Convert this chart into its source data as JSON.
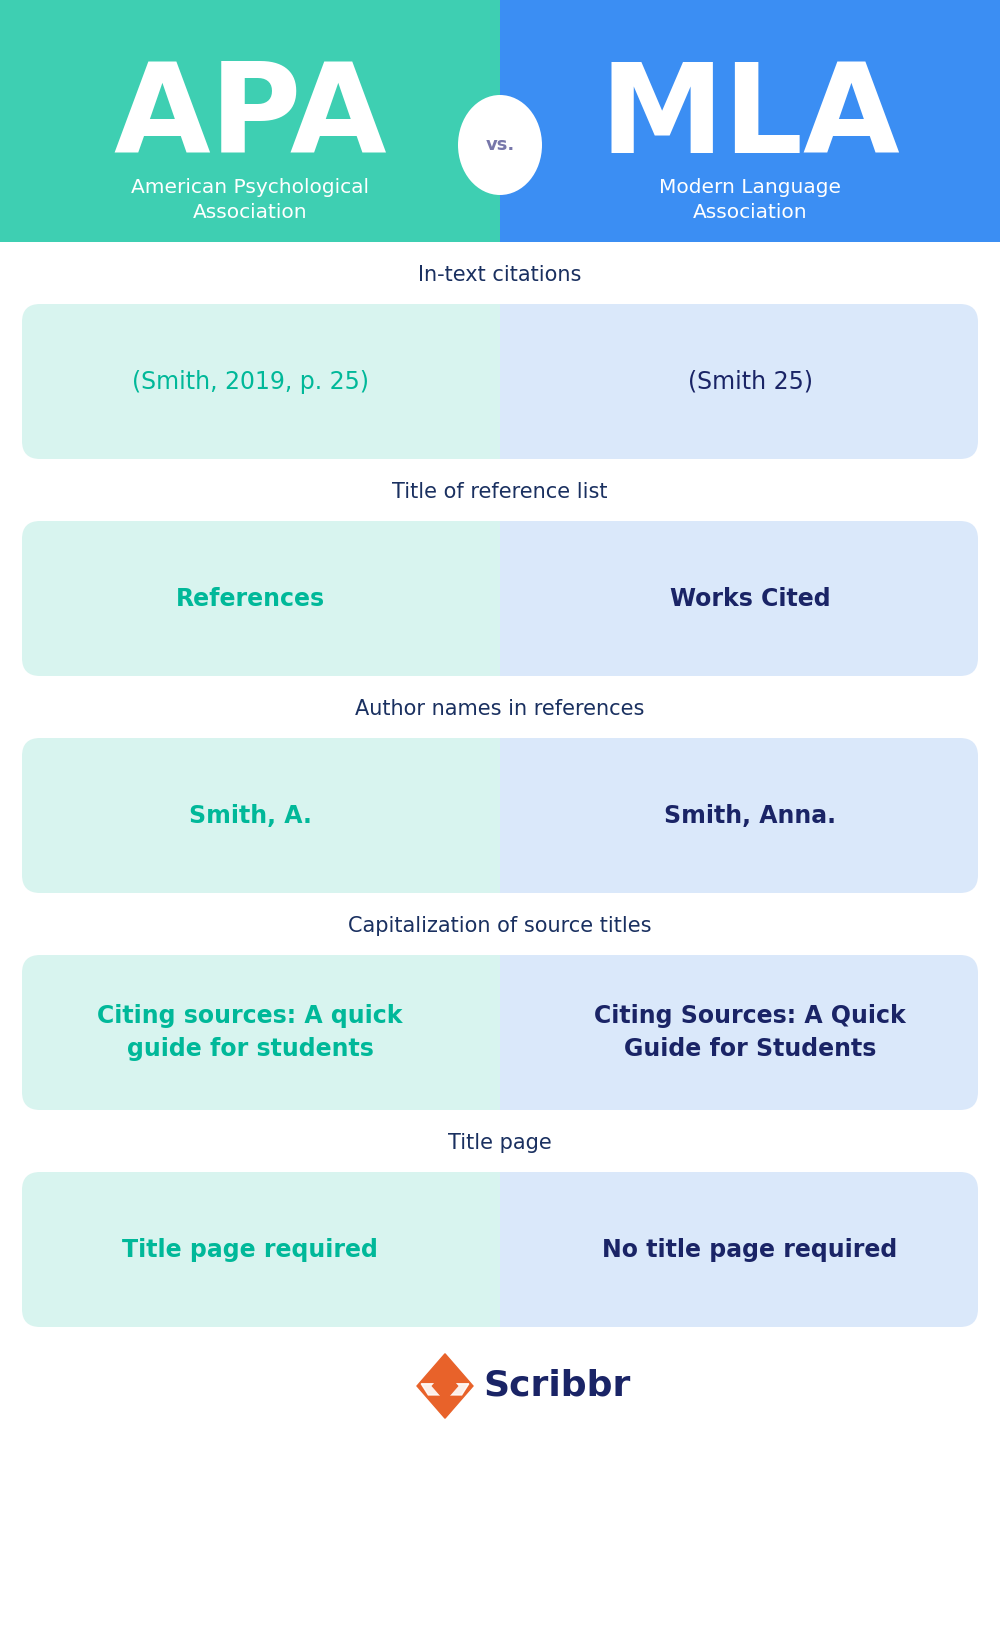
{
  "apa_color": "#3ecfb2",
  "mla_color": "#3b8ef3",
  "apa_light": "#d8f4ef",
  "mla_light": "#dae8fa",
  "white": "#ffffff",
  "bg_white": "#f8faff",
  "dark_blue": "#1a2466",
  "teal_text": "#00b899",
  "section_label_color": "#1a3060",
  "vs_text_color": "#7777aa",
  "orange": "#e8622a",
  "scribbr_blue": "#1a2466",
  "apa_title": "APA",
  "mla_title": "MLA",
  "apa_sub": "American Psychological\nAssociation",
  "mla_sub": "Modern Language\nAssociation",
  "vs_text": "vs.",
  "rows": [
    {
      "label": "In-text citations",
      "apa_text": "(Smith, 2019, p. 25)",
      "mla_text": "(Smith 25)",
      "apa_bold": false,
      "mla_bold": false
    },
    {
      "label": "Title of reference list",
      "apa_text": "References",
      "mla_text": "Works Cited",
      "apa_bold": true,
      "mla_bold": true
    },
    {
      "label": "Author names in references",
      "apa_text": "Smith, A.",
      "mla_text": "Smith, Anna.",
      "apa_bold": true,
      "mla_bold": true
    },
    {
      "label": "Capitalization of source titles",
      "apa_text": "Citing sources: A quick\nguide for students",
      "mla_text": "Citing Sources: A Quick\nGuide for Students",
      "apa_bold": true,
      "mla_bold": true
    },
    {
      "label": "Title page",
      "apa_text": "Title page required",
      "mla_text": "No title page required",
      "apa_bold": true,
      "mla_bold": true
    }
  ],
  "fig_width": 10.0,
  "fig_height": 16.27,
  "dpi": 100
}
